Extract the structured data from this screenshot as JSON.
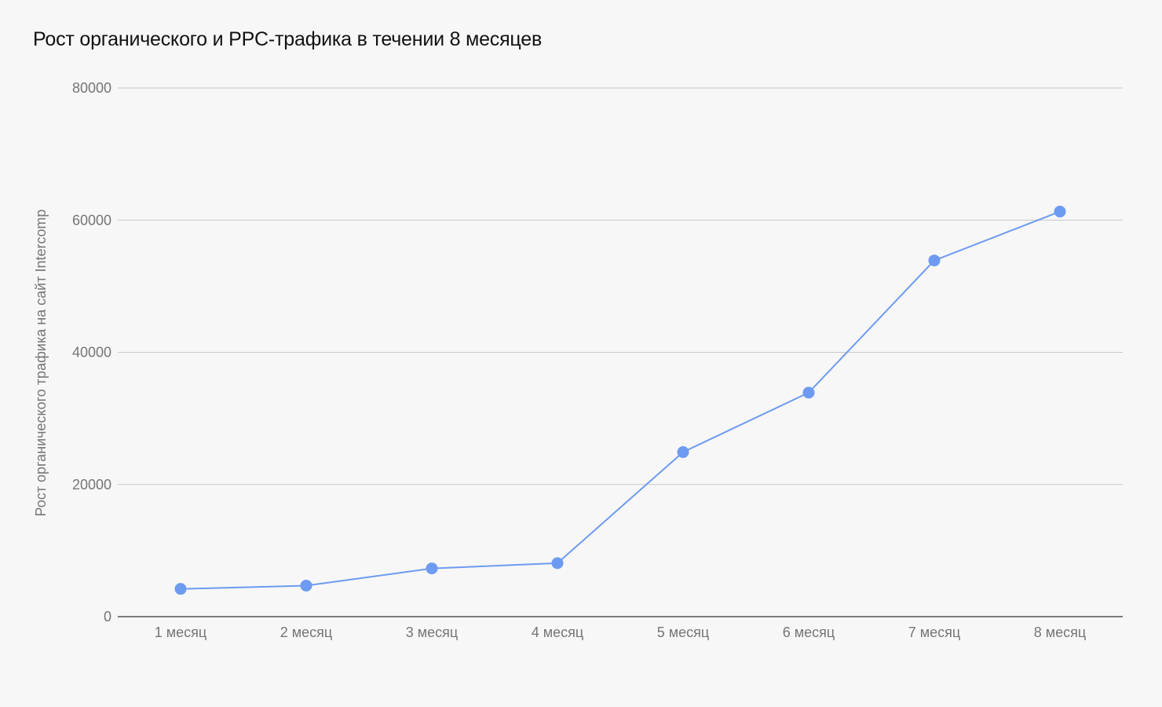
{
  "chart_data": {
    "type": "line",
    "title": "Рост органического и PPC-трафика в течении 8 месяцев",
    "xlabel": "",
    "ylabel": "Рост органического трафика на сайт Intercomp",
    "categories": [
      "1 месяц",
      "2 месяц",
      "3 месяц",
      "4 месяц",
      "5 месяц",
      "6 месяц",
      "7 месяц",
      "8 месяц"
    ],
    "series": [
      {
        "values": [
          4200,
          4700,
          7300,
          8100,
          24900,
          33900,
          53900,
          61300
        ]
      }
    ],
    "ylim": [
      0,
      80000
    ],
    "yticks": [
      0,
      20000,
      40000,
      60000,
      80000
    ],
    "grid": true,
    "legend": "none",
    "colors": {
      "line": "#6d9bf1",
      "point": "#6d9bf1",
      "grid": "#c8c8c8",
      "axis": "#333333",
      "tick_label": "#757575",
      "title": "#111111",
      "background": "#f7f7f7"
    }
  }
}
